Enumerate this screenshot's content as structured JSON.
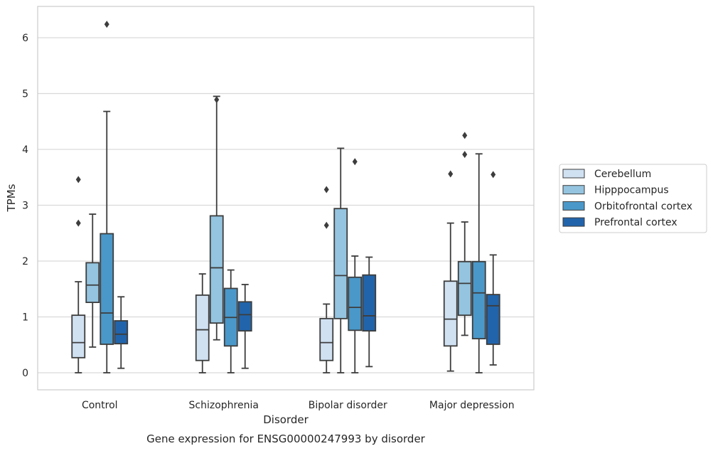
{
  "chart_data": {
    "type": "box",
    "title": "Gene expression for ENSG00000247993 by disorder",
    "xlabel": "Disorder",
    "ylabel": "TPMs",
    "ylim": [
      -0.3,
      6.55
    ],
    "yticks": [
      0,
      1,
      2,
      3,
      4,
      5,
      6
    ],
    "grid": "horizontal",
    "legend_position": "right",
    "categories": [
      "Control",
      "Schizophrenia",
      "Bipolar disorder",
      "Major depression"
    ],
    "series": [
      {
        "name": "Cerebellum",
        "color": "#d0e1f2",
        "boxes": [
          {
            "whislo": 0.0,
            "q1": 0.27,
            "med": 0.54,
            "q3": 1.03,
            "whishi": 1.63,
            "fliers": [
              2.68,
              3.46
            ]
          },
          {
            "whislo": 0.0,
            "q1": 0.22,
            "med": 0.77,
            "q3": 1.39,
            "whishi": 1.77,
            "fliers": []
          },
          {
            "whislo": 0.0,
            "q1": 0.22,
            "med": 0.54,
            "q3": 0.97,
            "whishi": 1.23,
            "fliers": [
              2.64,
              3.28
            ]
          },
          {
            "whislo": 0.03,
            "q1": 0.48,
            "med": 0.96,
            "q3": 1.64,
            "whishi": 2.68,
            "fliers": [
              3.56
            ]
          }
        ]
      },
      {
        "name": "Hipppocampus",
        "color": "#94c4df",
        "boxes": [
          {
            "whislo": 0.46,
            "q1": 1.26,
            "med": 1.57,
            "q3": 1.97,
            "whishi": 2.84,
            "fliers": []
          },
          {
            "whislo": 0.59,
            "q1": 0.89,
            "med": 1.88,
            "q3": 2.81,
            "whishi": 4.95,
            "fliers": [
              4.89
            ]
          },
          {
            "whislo": 0.0,
            "q1": 0.97,
            "med": 1.74,
            "q3": 2.94,
            "whishi": 4.02,
            "fliers": []
          },
          {
            "whislo": 0.67,
            "q1": 1.03,
            "med": 1.6,
            "q3": 1.99,
            "whishi": 2.7,
            "fliers": [
              3.91,
              4.25
            ]
          }
        ]
      },
      {
        "name": "Orbitofrontal cortex",
        "color": "#4a98c9",
        "boxes": [
          {
            "whislo": 0.0,
            "q1": 0.51,
            "med": 1.07,
            "q3": 2.49,
            "whishi": 4.68,
            "fliers": [
              6.24
            ]
          },
          {
            "whislo": 0.0,
            "q1": 0.48,
            "med": 0.99,
            "q3": 1.51,
            "whishi": 1.84,
            "fliers": []
          },
          {
            "whislo": 0.0,
            "q1": 0.76,
            "med": 1.17,
            "q3": 1.71,
            "whishi": 2.09,
            "fliers": [
              3.78
            ]
          },
          {
            "whislo": 0.0,
            "q1": 0.61,
            "med": 1.43,
            "q3": 1.99,
            "whishi": 3.92,
            "fliers": []
          }
        ]
      },
      {
        "name": "Prefrontal cortex",
        "color": "#2164ab",
        "boxes": [
          {
            "whislo": 0.08,
            "q1": 0.52,
            "med": 0.69,
            "q3": 0.93,
            "whishi": 1.36,
            "fliers": []
          },
          {
            "whislo": 0.08,
            "q1": 0.75,
            "med": 1.04,
            "q3": 1.27,
            "whishi": 1.58,
            "fliers": []
          },
          {
            "whislo": 0.11,
            "q1": 0.75,
            "med": 1.02,
            "q3": 1.75,
            "whishi": 2.07,
            "fliers": []
          },
          {
            "whislo": 0.14,
            "q1": 0.51,
            "med": 1.2,
            "q3": 1.4,
            "whishi": 2.11,
            "fliers": [
              3.55
            ]
          }
        ]
      }
    ]
  }
}
